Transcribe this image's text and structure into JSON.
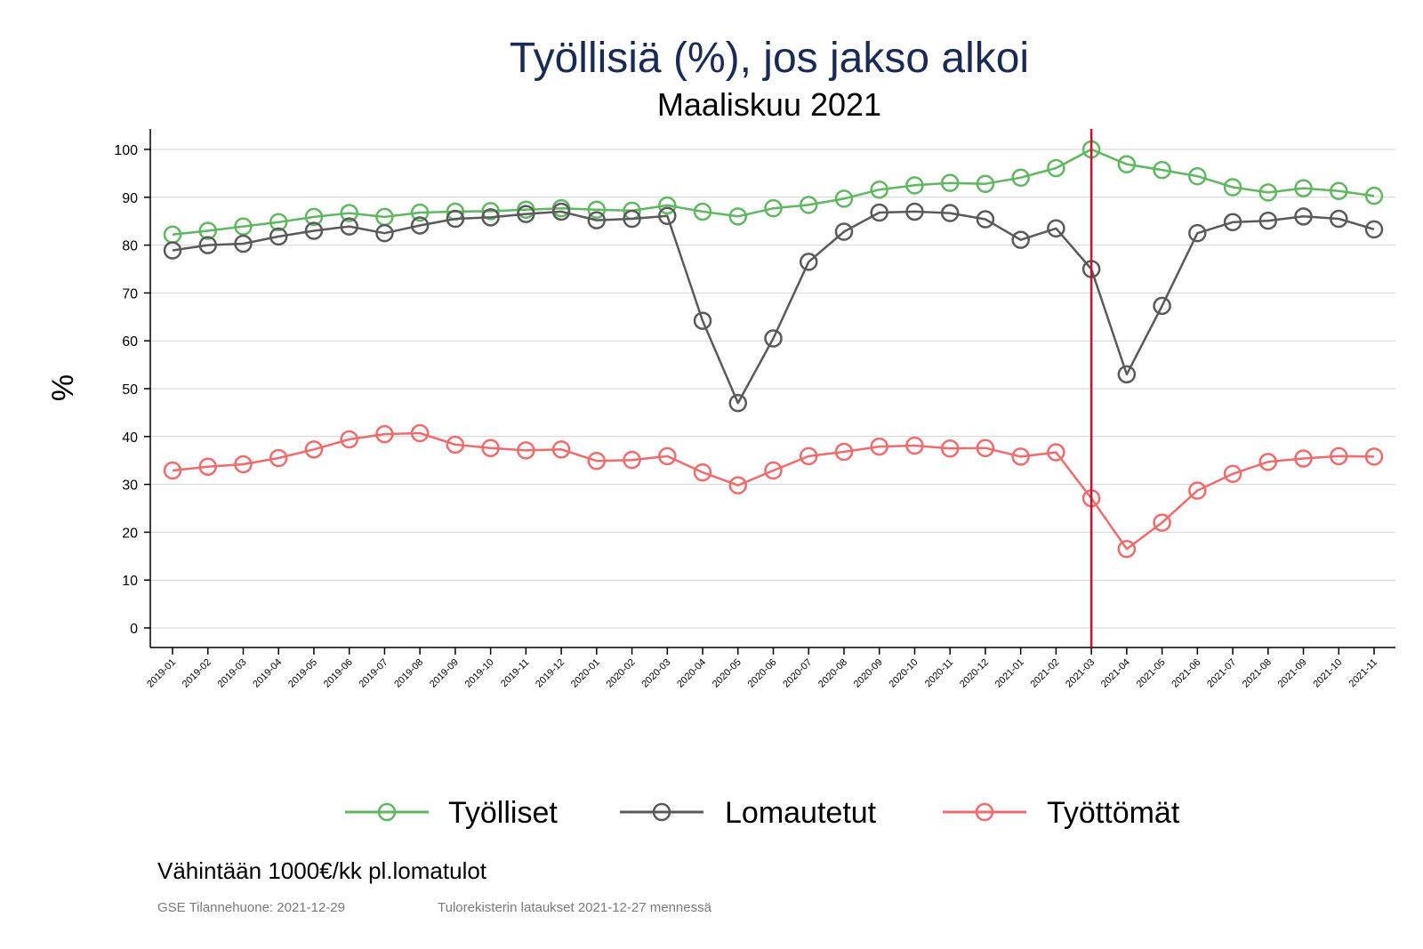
{
  "chart_data": {
    "type": "line",
    "title": "Työllisiä (%), jos jakso alkoi",
    "subtitle": "Maaliskuu 2021",
    "ylabel": "%",
    "xlabel": "",
    "ylim": [
      0,
      100
    ],
    "yticks": [
      0,
      10,
      20,
      30,
      40,
      50,
      60,
      70,
      80,
      90,
      100
    ],
    "grid": true,
    "legend_position": "bottom",
    "categories": [
      "2019-01",
      "2019-02",
      "2019-03",
      "2019-04",
      "2019-05",
      "2019-06",
      "2019-07",
      "2019-08",
      "2019-09",
      "2019-10",
      "2019-11",
      "2019-12",
      "2020-01",
      "2020-02",
      "2020-03",
      "2020-04",
      "2020-05",
      "2020-06",
      "2020-07",
      "2020-08",
      "2020-09",
      "2020-10",
      "2020-11",
      "2020-12",
      "2021-01",
      "2021-02",
      "2021-03",
      "2021-04",
      "2021-05",
      "2021-06",
      "2021-07",
      "2021-08",
      "2021-09",
      "2021-10",
      "2021-11"
    ],
    "reference_line": {
      "category": "2021-03",
      "color": "#c8102e"
    },
    "series": [
      {
        "name": "Työlliset",
        "color": "#5fb85f",
        "values": [
          82.2,
          83.0,
          83.9,
          84.8,
          85.9,
          86.7,
          85.9,
          86.8,
          87.0,
          87.1,
          87.4,
          87.7,
          87.4,
          87.2,
          88.3,
          87.0,
          86.0,
          87.7,
          88.4,
          89.7,
          91.6,
          92.5,
          93.0,
          92.8,
          94.1,
          96.1,
          100.0,
          96.9,
          95.7,
          94.4,
          92.1,
          91.0,
          91.9,
          91.3,
          90.3
        ]
      },
      {
        "name": "Lomautetut",
        "color": "#5a5a5a",
        "values": [
          78.9,
          80.0,
          80.3,
          81.8,
          83.0,
          83.9,
          82.5,
          84.1,
          85.5,
          85.8,
          86.5,
          87.0,
          85.2,
          85.5,
          86.1,
          64.2,
          47.0,
          60.5,
          76.5,
          82.8,
          86.8,
          87.0,
          86.7,
          85.4,
          81.1,
          83.5,
          75.0,
          53.0,
          67.3,
          82.5,
          84.8,
          85.1,
          86.0,
          85.5,
          83.3
        ]
      },
      {
        "name": "Työttömät",
        "color": "#f06b6b",
        "values": [
          32.9,
          33.7,
          34.2,
          35.5,
          37.3,
          39.4,
          40.5,
          40.7,
          38.3,
          37.6,
          37.1,
          37.3,
          34.9,
          35.1,
          35.9,
          32.5,
          29.8,
          32.9,
          35.9,
          36.8,
          37.9,
          38.1,
          37.5,
          37.6,
          35.8,
          36.7,
          27.1,
          16.5,
          22.0,
          28.7,
          32.2,
          34.7,
          35.4,
          35.9,
          35.8
        ]
      }
    ]
  },
  "footer": {
    "note": "Vähintään 1000€/kk pl.lomatulot",
    "source": "GSE Tilannehuone: 2021-12-29",
    "data_note": "Tulorekisterin lataukset 2021-12-27 mennessä"
  }
}
